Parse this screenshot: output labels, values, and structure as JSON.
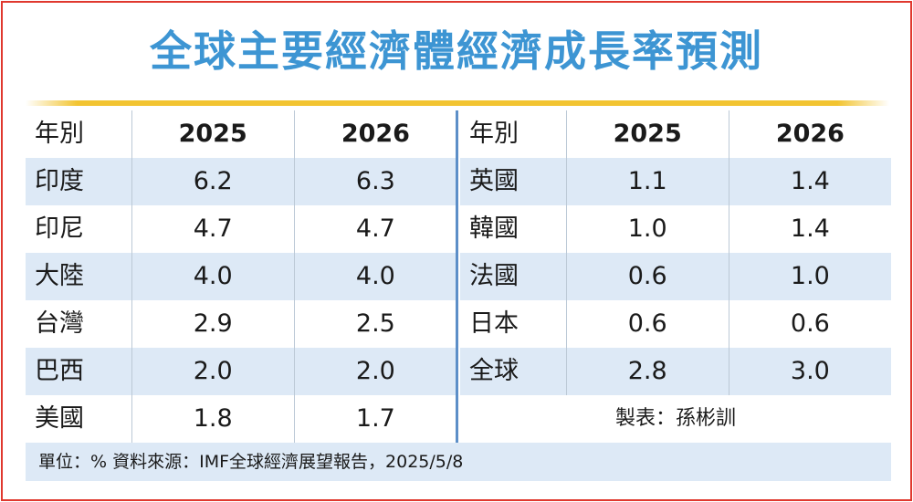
{
  "title": "全球主要經濟體經濟成長率預測",
  "left_table": {
    "headers": [
      "年別",
      "2025",
      "2026"
    ],
    "rows": [
      [
        "印度",
        "6.2",
        "6.3"
      ],
      [
        "印尼",
        "4.7",
        "4.7"
      ],
      [
        "大陸",
        "4.0",
        "4.0"
      ],
      [
        "台灣",
        "2.9",
        "2.5"
      ],
      [
        "巴西",
        "2.0",
        "2.0"
      ],
      [
        "美國",
        "1.8",
        "1.7"
      ]
    ]
  },
  "right_table": {
    "headers": [
      "年別",
      "2025",
      "2026"
    ],
    "rows": [
      [
        "英國",
        "1.1",
        "1.4"
      ],
      [
        "韓國",
        "1.0",
        "1.4"
      ],
      [
        "法國",
        "0.6",
        "1.0"
      ],
      [
        "日本",
        "0.6",
        "0.6"
      ],
      [
        "全球",
        "2.8",
        "3.0"
      ]
    ]
  },
  "credit": "製表：孫彬訓",
  "footer": "單位：%  資料來源：IMF全球經濟展望報告，2025/5/8",
  "colors": {
    "title": "#3d95d3",
    "border": "#e0382e",
    "rule": "#f2c431",
    "row_shade": "#dde9f6",
    "divider": "#5d8fc8"
  }
}
